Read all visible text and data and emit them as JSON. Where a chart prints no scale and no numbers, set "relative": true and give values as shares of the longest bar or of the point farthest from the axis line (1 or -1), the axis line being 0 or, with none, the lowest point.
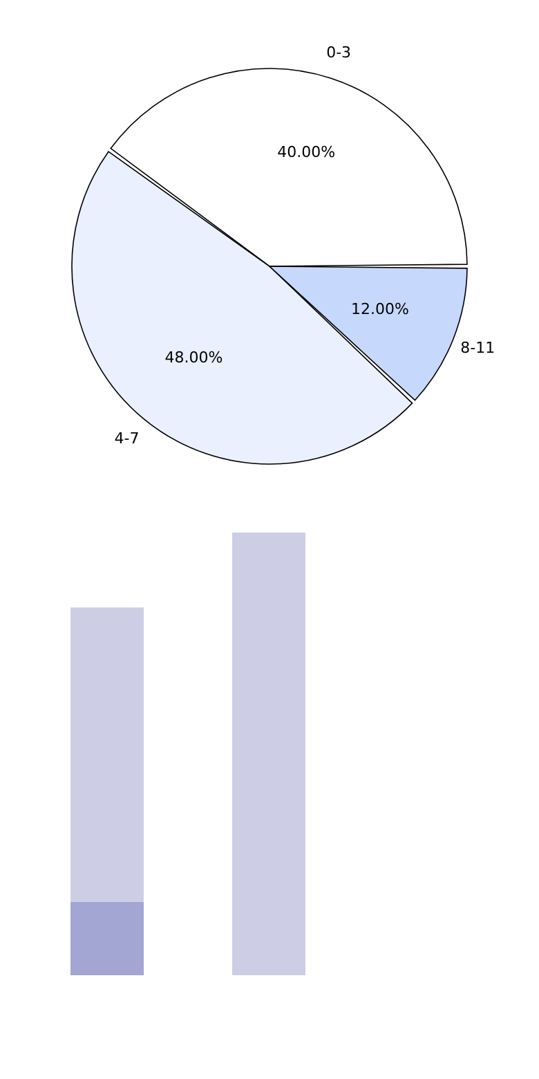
{
  "chart_data": [
    {
      "type": "pie",
      "categories": [
        "0-3",
        "4-7",
        "8-11"
      ],
      "values": [
        40,
        48,
        12
      ],
      "colors": [
        "#ffffff",
        "#eaf0fd",
        "#c6d9fd"
      ],
      "value_labels": [
        "40.00%",
        "48.00%",
        "12.00%"
      ],
      "legend": false
    },
    {
      "type": "bar",
      "categories": [
        null,
        null
      ],
      "stacked": true,
      "relative": true,
      "legend": false,
      "series": [
        {
          "color": "#a3a6d3",
          "values": [
            0.166,
            0
          ]
        },
        {
          "color": "#cdcee6",
          "values": [
            0.665,
            1.0
          ]
        }
      ]
    }
  ]
}
